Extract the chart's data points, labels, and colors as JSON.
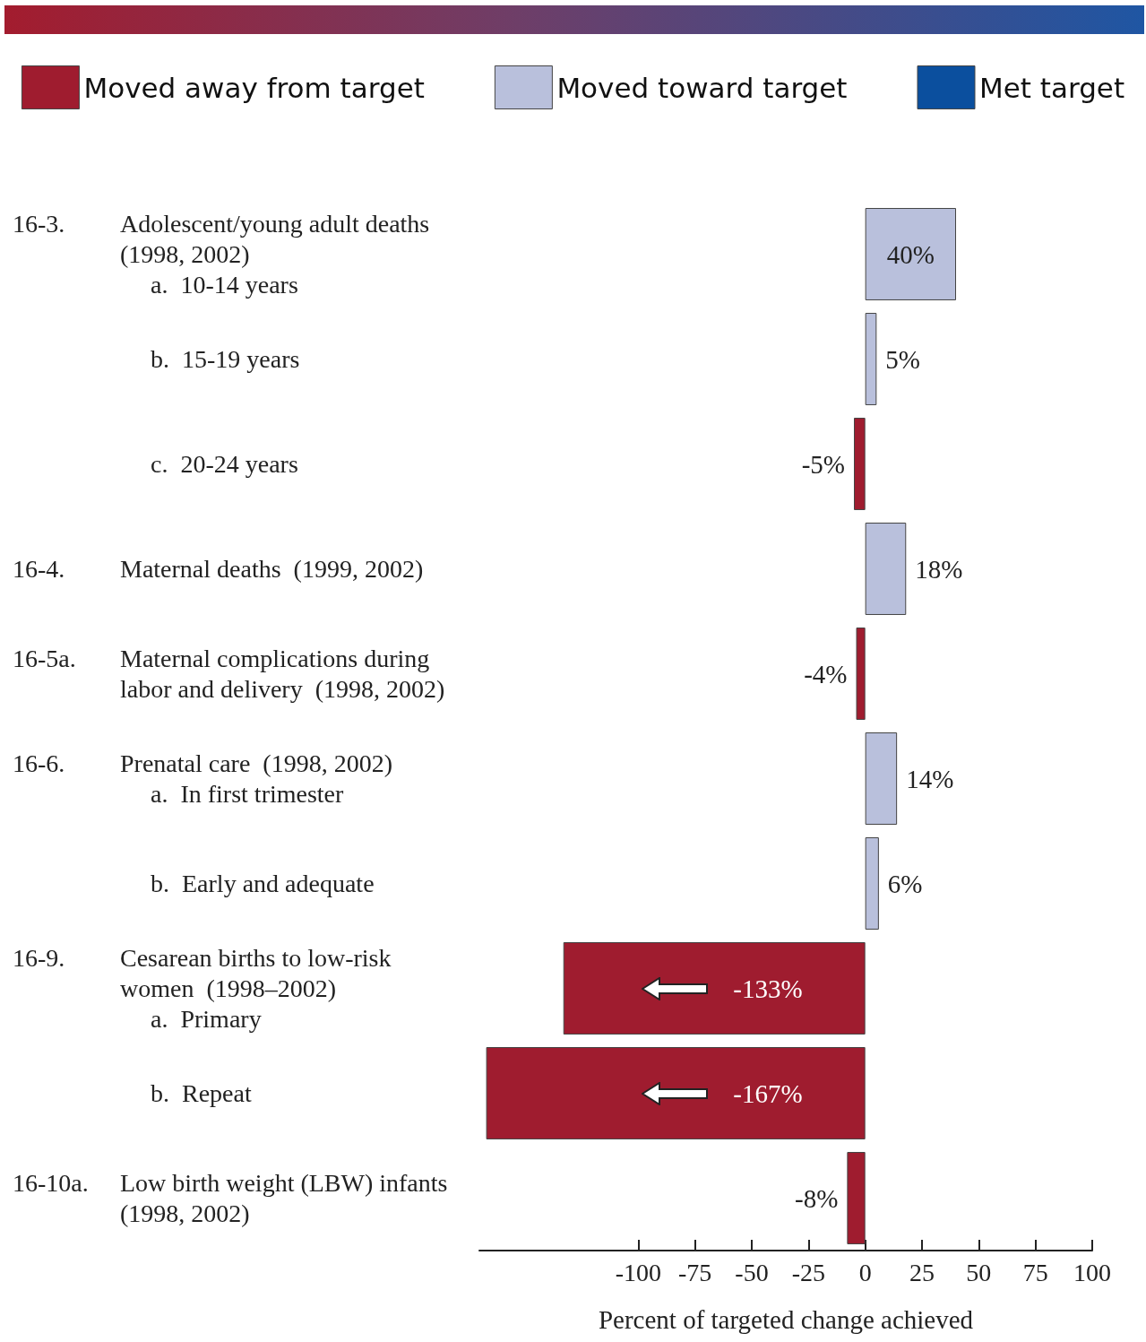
{
  "chart_data": {
    "type": "bar",
    "orientation": "horizontal",
    "categories": [
      "16-3.\tAdolescent/young adult deaths\n(1998, 2002)\na.  10-14 years",
      "b.  15-19 years",
      "c.  20-24 years",
      "16-4.\tMaternal deaths  (1999, 2002)",
      "16-5a.\tMaternal complications during\nlabor and delivery  (1998, 2002)",
      "16-6.\tPrenatal care  (1998, 2002)\na.  In first trimester",
      "b.  Early and adequate",
      "16-9.\tCesarean births to low-risk\nwomen  (1998–2002)\na.  Primary",
      "b.  Repeat",
      "16-10a.\tLow birth weight (LBW) infants\n(1998, 2002)"
    ],
    "series": [
      {
        "name": "Moved away from target",
        "color": "#9f1c2f",
        "values": [
          null,
          null,
          -5,
          null,
          -4,
          null,
          null,
          -133,
          -167,
          -8
        ],
        "value_labels": [
          null,
          null,
          "-5%",
          null,
          "-4%",
          null,
          null,
          "-133%",
          "-167%",
          "-8%"
        ]
      },
      {
        "name": "Moved toward target",
        "color": "#b9c0dc",
        "values": [
          40,
          5,
          null,
          18,
          null,
          14,
          6,
          null,
          null,
          null
        ],
        "value_labels": [
          "40%",
          "5%",
          null,
          "18%",
          null,
          "14%",
          "6%",
          null,
          null,
          null
        ]
      },
      {
        "name": "Met target",
        "color": "#0b4f9e",
        "values": [
          null,
          null,
          null,
          null,
          null,
          null,
          null,
          null,
          null,
          null
        ]
      }
    ],
    "xlim": [
      -170,
      100
    ],
    "xticks": [
      -100,
      -75,
      -50,
      -25,
      0,
      25,
      50,
      75,
      100
    ],
    "xlabel": "Percent of targeted change achieved",
    "legend": "top",
    "grid": false
  }
}
